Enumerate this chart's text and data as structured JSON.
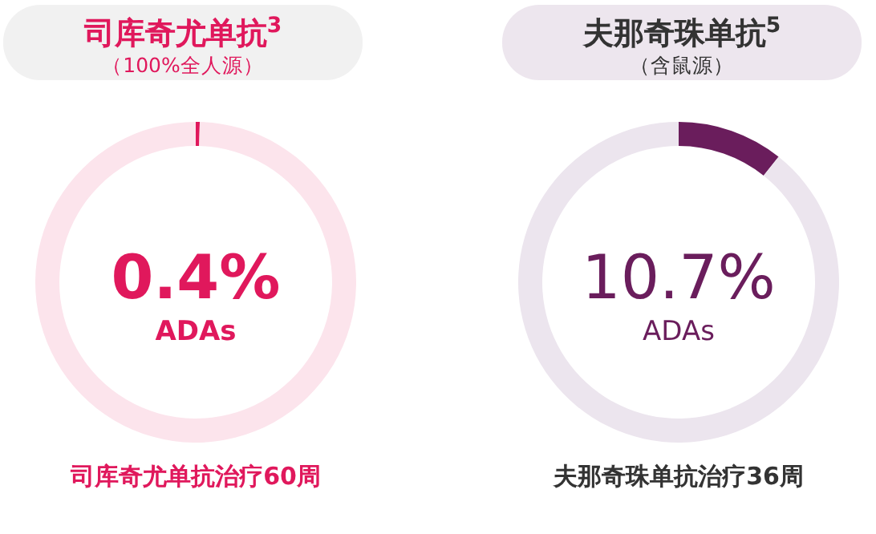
{
  "chart_data": [
    {
      "type": "donut",
      "title": "司库奇尤单抗$^{3}$",
      "subtitle": "（100%全人源）",
      "categories": [
        "ADAs",
        null
      ],
      "values": [
        0.4,
        99.6
      ],
      "colors": [
        "#e0185c",
        "#fce4ec"
      ],
      "value_labels": [
        "0.4%",
        null
      ],
      "annotations": [
        "司库奇尤单抗治疗60周"
      ]
    },
    {
      "type": "donut",
      "title": "夫那奇珠单抗$^{5}$",
      "subtitle": "（含鼠源）",
      "categories": [
        "ADAs",
        null
      ],
      "values": [
        10.7,
        89.3
      ],
      "colors": [
        "#6a1d5c",
        "#ece5ee"
      ],
      "value_labels": [
        "10.7%",
        null
      ],
      "annotations": [
        "夫那奇珠单抗治疗36周"
      ]
    }
  ]
}
